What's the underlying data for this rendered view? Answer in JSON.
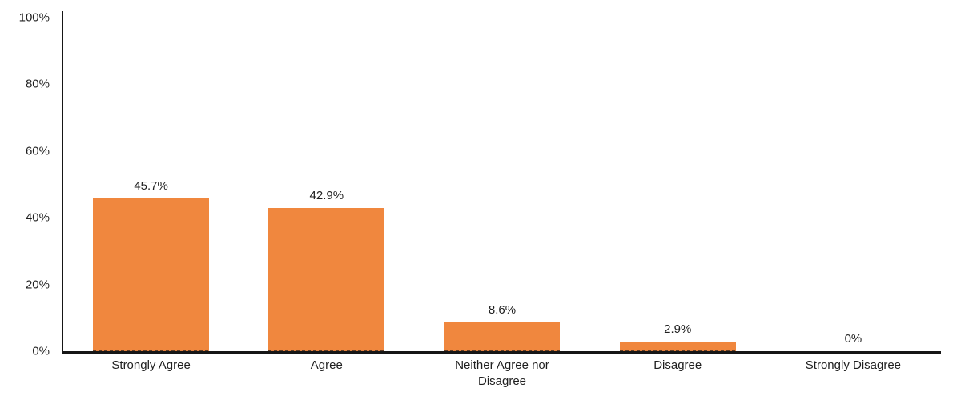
{
  "chart_data": {
    "type": "bar",
    "title": "",
    "xlabel": "",
    "ylabel": "",
    "categories": [
      "Strongly Agree",
      "Agree",
      "Neither Agree nor Disagree",
      "Disagree",
      "Strongly Disagree"
    ],
    "values": [
      45.7,
      42.9,
      8.6,
      2.9,
      0
    ],
    "value_labels": [
      "45.7%",
      "42.9%",
      "8.6%",
      "2.9%",
      "0%"
    ],
    "ylim": [
      0,
      100
    ],
    "y_ticks": [
      0,
      20,
      40,
      60,
      80,
      100
    ],
    "y_tick_labels": [
      "0%",
      "20%",
      "40%",
      "60%",
      "80%",
      "100%"
    ],
    "grid": false,
    "legend": false,
    "bar_color": "#F0873E",
    "axis_color": "#161616",
    "text_color": "#1f1f1f"
  }
}
